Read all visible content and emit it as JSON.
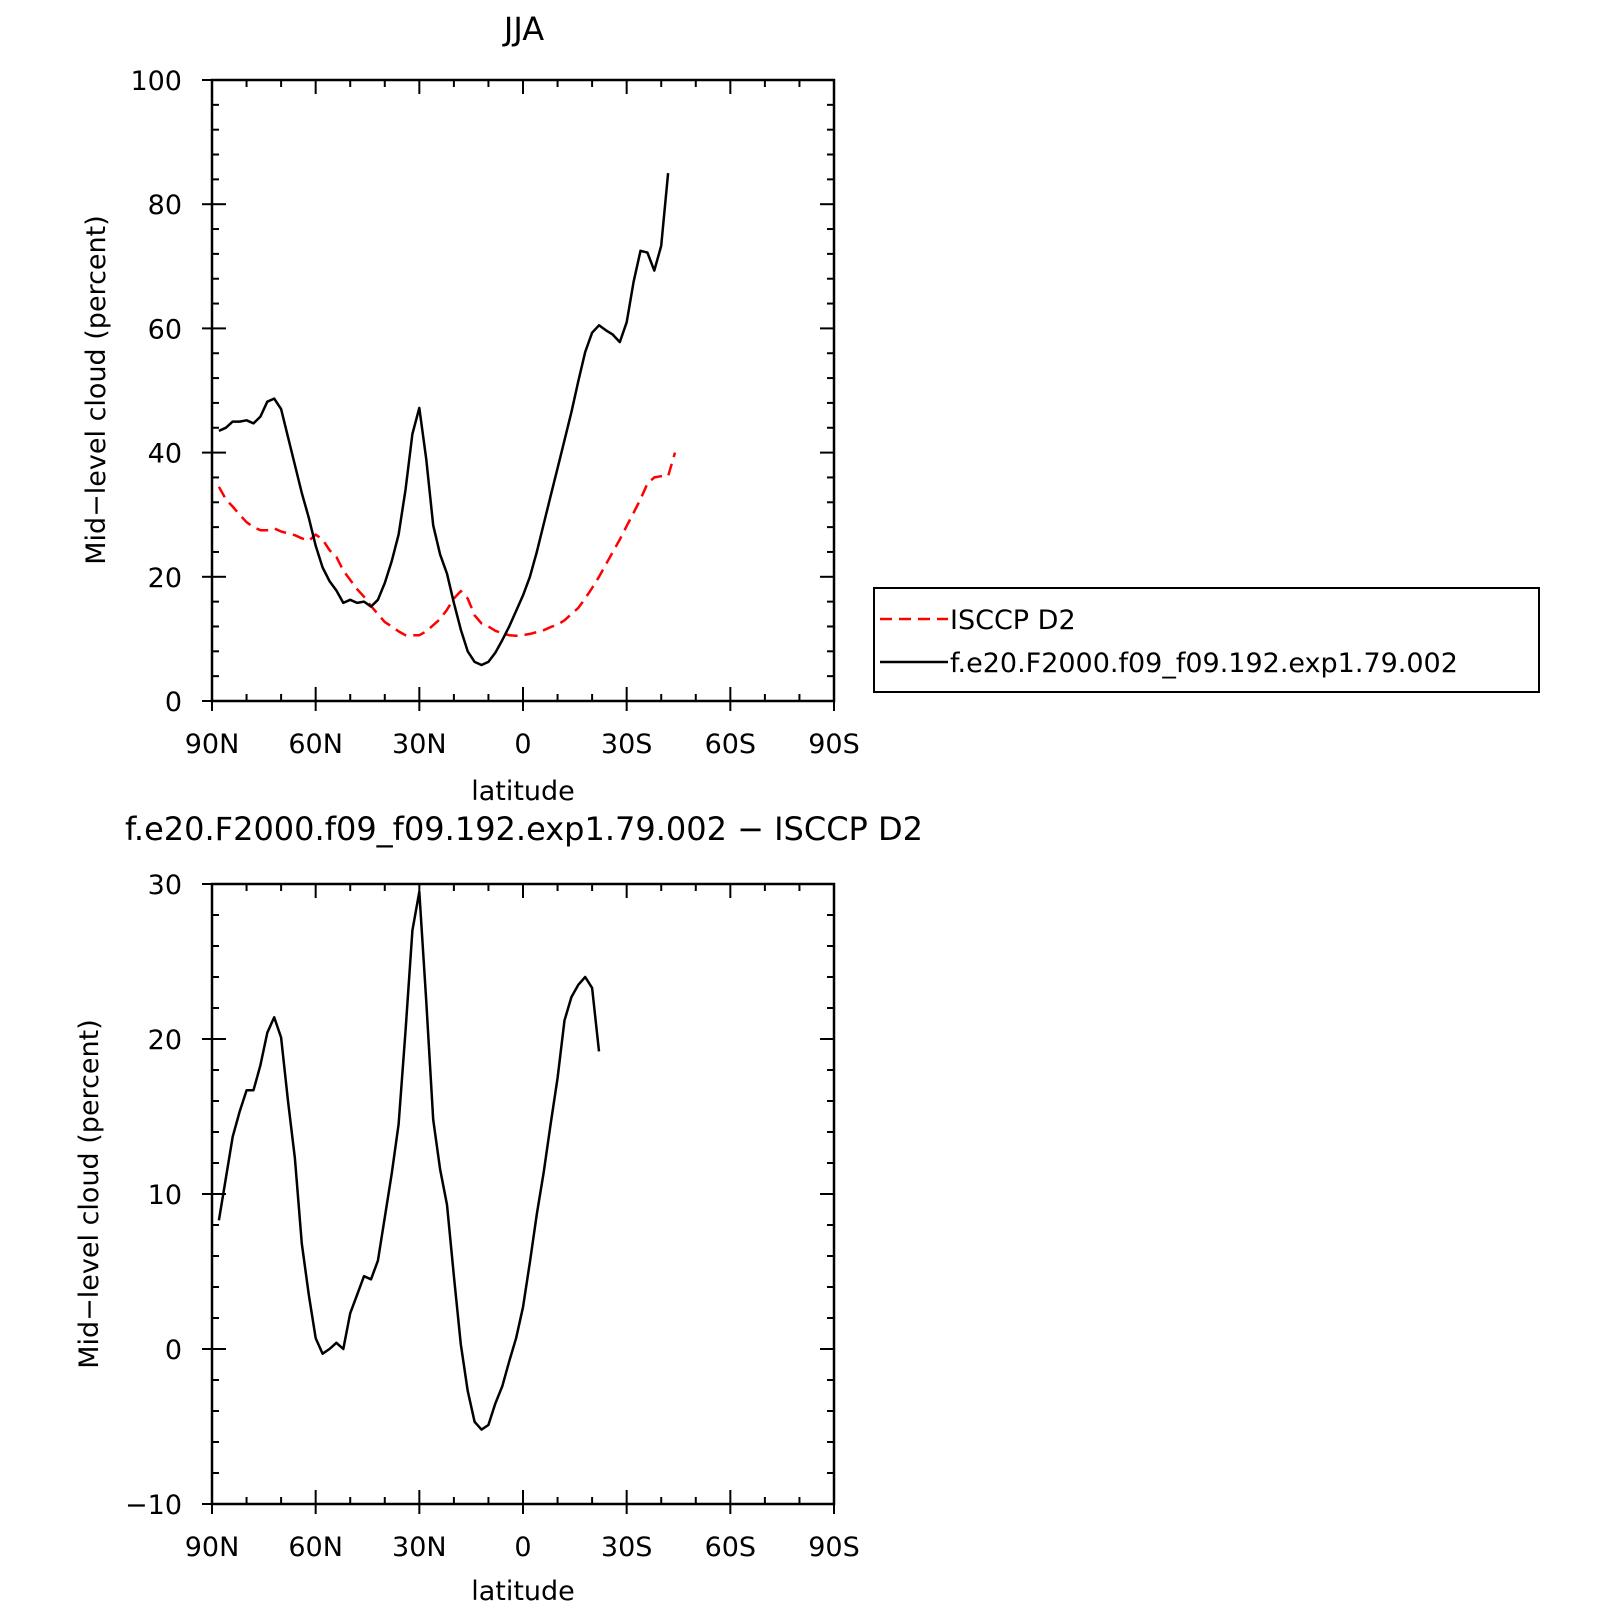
{
  "chart_data": [
    {
      "type": "line",
      "title": "JJA",
      "xlabel": "latitude",
      "ylabel": "Mid−level cloud (percent)",
      "xlim": [
        90,
        -90
      ],
      "ylim": [
        0,
        100
      ],
      "x_ticks": [
        {
          "value": 90,
          "label": "90N"
        },
        {
          "value": 60,
          "label": "60N"
        },
        {
          "value": 30,
          "label": "30N"
        },
        {
          "value": 0,
          "label": "0"
        },
        {
          "value": -30,
          "label": "30S"
        },
        {
          "value": -60,
          "label": "60S"
        },
        {
          "value": -90,
          "label": "90S"
        }
      ],
      "y_ticks": [
        {
          "value": 0,
          "label": "0"
        },
        {
          "value": 20,
          "label": "20"
        },
        {
          "value": 40,
          "label": "40"
        },
        {
          "value": 60,
          "label": "60"
        },
        {
          "value": 80,
          "label": "80"
        },
        {
          "value": 100,
          "label": "100"
        }
      ],
      "legend_position": "right",
      "series": [
        {
          "name": "ISCCP D2",
          "color": "#ff0000",
          "dash": true,
          "points": [
            [
              88,
              34.5
            ],
            [
              86,
              32.5
            ],
            [
              84,
              31.3
            ],
            [
              82,
              30
            ],
            [
              80,
              28.8
            ],
            [
              78,
              28
            ],
            [
              76,
              27.5
            ],
            [
              74,
              27.5
            ],
            [
              72,
              27.8
            ],
            [
              70,
              27.3
            ],
            [
              68,
              27
            ],
            [
              66,
              26.7
            ],
            [
              64,
              26.2
            ],
            [
              62,
              25.8
            ],
            [
              60,
              26.8
            ],
            [
              58,
              26
            ],
            [
              56,
              24.3
            ],
            [
              54,
              23.2
            ],
            [
              52,
              21
            ],
            [
              50,
              19.5
            ],
            [
              48,
              18
            ],
            [
              46,
              16.8
            ],
            [
              44,
              15.3
            ],
            [
              42,
              14
            ],
            [
              40,
              12.7
            ],
            [
              38,
              12
            ],
            [
              36,
              11.2
            ],
            [
              34,
              10.6
            ],
            [
              32,
              10.6
            ],
            [
              30,
              10.6
            ],
            [
              28,
              11.2
            ],
            [
              26,
              12.2
            ],
            [
              24,
              13.2
            ],
            [
              22,
              14.7
            ],
            [
              20,
              16.5
            ],
            [
              18,
              17.7
            ],
            [
              16,
              16.5
            ],
            [
              14,
              13.8
            ],
            [
              12,
              12.5
            ],
            [
              10,
              12
            ],
            [
              8,
              11.3
            ],
            [
              6,
              10.9
            ],
            [
              4,
              10.6
            ],
            [
              2,
              10.5
            ],
            [
              0,
              10.6
            ],
            [
              -2,
              10.8
            ],
            [
              -4,
              11.1
            ],
            [
              -6,
              11.4
            ],
            [
              -8,
              11.9
            ],
            [
              -10,
              12.3
            ],
            [
              -12,
              13
            ],
            [
              -14,
              14
            ],
            [
              -16,
              15
            ],
            [
              -18,
              16.5
            ],
            [
              -20,
              18.2
            ],
            [
              -22,
              20
            ],
            [
              -24,
              22
            ],
            [
              -26,
              24
            ],
            [
              -28,
              26
            ],
            [
              -30,
              28.2
            ],
            [
              -32,
              30.3
            ],
            [
              -34,
              32.5
            ],
            [
              -36,
              35
            ],
            [
              -38,
              36
            ],
            [
              -40,
              36.2
            ],
            [
              -42,
              36.2
            ],
            [
              -44,
              40
            ]
          ]
        },
        {
          "name": "f.e20.F2000.f09_f09.192.exp1.79.002",
          "color": "#000000",
          "dash": false,
          "points": [
            [
              88,
              43.5
            ],
            [
              86,
              44
            ],
            [
              84,
              45
            ],
            [
              82,
              45
            ],
            [
              80,
              45.2
            ],
            [
              78,
              44.7
            ],
            [
              76,
              45.8
            ],
            [
              74,
              48.2
            ],
            [
              72,
              48.7
            ],
            [
              70,
              47
            ],
            [
              68,
              42.5
            ],
            [
              66,
              38
            ],
            [
              64,
              33.5
            ],
            [
              62,
              29.5
            ],
            [
              60,
              25
            ],
            [
              58,
              21.5
            ],
            [
              56,
              19.3
            ],
            [
              54,
              17.8
            ],
            [
              52,
              15.8
            ],
            [
              50,
              16.3
            ],
            [
              48,
              15.8
            ],
            [
              46,
              16
            ],
            [
              44,
              15.2
            ],
            [
              42,
              16.3
            ],
            [
              40,
              19
            ],
            [
              38,
              22.5
            ],
            [
              36,
              26.8
            ],
            [
              34,
              34
            ],
            [
              32,
              43
            ],
            [
              30,
              47.2
            ],
            [
              28,
              39
            ],
            [
              26,
              28.3
            ],
            [
              24,
              23.6
            ],
            [
              22,
              20.5
            ],
            [
              20,
              15.8
            ],
            [
              18,
              11.5
            ],
            [
              16,
              8
            ],
            [
              14,
              6.3
            ],
            [
              12,
              5.8
            ],
            [
              10,
              6.3
            ],
            [
              8,
              7.8
            ],
            [
              6,
              9.8
            ],
            [
              4,
              12
            ],
            [
              2,
              14.5
            ],
            [
              0,
              17
            ],
            [
              -2,
              20
            ],
            [
              -4,
              24
            ],
            [
              -6,
              28.5
            ],
            [
              -8,
              33
            ],
            [
              -10,
              37.5
            ],
            [
              -12,
              42
            ],
            [
              -14,
              46.5
            ],
            [
              -16,
              51.5
            ],
            [
              -18,
              56.2
            ],
            [
              -20,
              59.3
            ],
            [
              -22,
              60.5
            ],
            [
              -24,
              59.7
            ],
            [
              -26,
              59
            ],
            [
              -28,
              57.8
            ],
            [
              -30,
              61
            ],
            [
              -32,
              67.5
            ],
            [
              -34,
              72.5
            ],
            [
              -36,
              72.2
            ],
            [
              -38,
              69.3
            ],
            [
              -40,
              73.3
            ],
            [
              -42,
              85
            ]
          ]
        }
      ]
    },
    {
      "type": "line",
      "title": "f.e20.F2000.f09_f09.192.exp1.79.002 − ISCCP D2",
      "xlabel": "latitude",
      "ylabel": "Mid−level cloud (percent)",
      "xlim": [
        90,
        -90
      ],
      "ylim": [
        -10,
        30
      ],
      "x_ticks": [
        {
          "value": 90,
          "label": "90N"
        },
        {
          "value": 60,
          "label": "60N"
        },
        {
          "value": 30,
          "label": "30N"
        },
        {
          "value": 0,
          "label": "0"
        },
        {
          "value": -30,
          "label": "30S"
        },
        {
          "value": -60,
          "label": "60S"
        },
        {
          "value": -90,
          "label": "90S"
        }
      ],
      "y_ticks": [
        {
          "value": -10,
          "label": "−10"
        },
        {
          "value": 0,
          "label": "0"
        },
        {
          "value": 10,
          "label": "10"
        },
        {
          "value": 20,
          "label": "20"
        },
        {
          "value": 30,
          "label": "30"
        }
      ],
      "series": [
        {
          "color": "#000000",
          "dash": false,
          "points": [
            [
              88,
              8.3
            ],
            [
              86,
              11
            ],
            [
              84,
              13.7
            ],
            [
              82,
              15.3
            ],
            [
              80,
              16.7
            ],
            [
              78,
              16.7
            ],
            [
              76,
              18.3
            ],
            [
              74,
              20.4
            ],
            [
              72,
              21.4
            ],
            [
              70,
              20.1
            ],
            [
              68,
              16
            ],
            [
              66,
              12.3
            ],
            [
              64,
              6.8
            ],
            [
              62,
              3.5
            ],
            [
              60,
              0.7
            ],
            [
              58,
              -0.3
            ],
            [
              56,
              0
            ],
            [
              54,
              0.4
            ],
            [
              52,
              0
            ],
            [
              50,
              2.3
            ],
            [
              48,
              3.5
            ],
            [
              46,
              4.7
            ],
            [
              44,
              4.5
            ],
            [
              42,
              5.7
            ],
            [
              40,
              8.5
            ],
            [
              38,
              11.3
            ],
            [
              36,
              14.5
            ],
            [
              34,
              20.5
            ],
            [
              32,
              27
            ],
            [
              30,
              29.5
            ],
            [
              28,
              22.5
            ],
            [
              26,
              14.8
            ],
            [
              24,
              11.6
            ],
            [
              22,
              9.3
            ],
            [
              20,
              4.7
            ],
            [
              18,
              0.3
            ],
            [
              16,
              -2.7
            ],
            [
              14,
              -4.7
            ],
            [
              12,
              -5.2
            ],
            [
              10,
              -4.9
            ],
            [
              8,
              -3.5
            ],
            [
              6,
              -2.4
            ],
            [
              4,
              -0.8
            ],
            [
              2,
              0.7
            ],
            [
              0,
              2.7
            ],
            [
              -2,
              5.6
            ],
            [
              -4,
              8.7
            ],
            [
              -6,
              11.4
            ],
            [
              -8,
              14.5
            ],
            [
              -10,
              17.5
            ],
            [
              -12,
              21.2
            ],
            [
              -14,
              22.7
            ],
            [
              -16,
              23.5
            ],
            [
              -18,
              24
            ],
            [
              -20,
              23.3
            ],
            [
              -22,
              19.2
            ]
          ]
        }
      ]
    }
  ]
}
